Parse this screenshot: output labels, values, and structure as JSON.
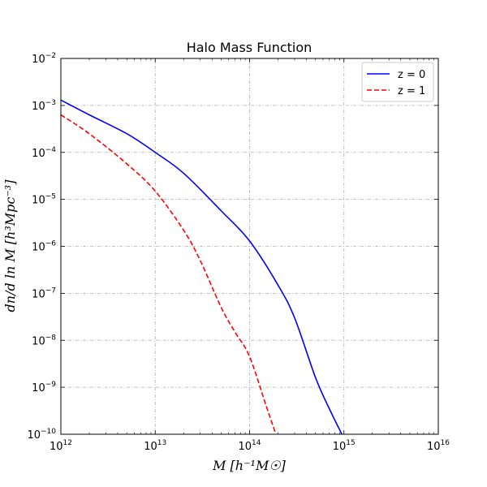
{
  "chart_data": {
    "type": "line",
    "title": "Halo Mass Function",
    "xlabel": "M [h⁻¹M☉]",
    "ylabel": "dn/d ln M [h³Mpc⁻³]",
    "xscale": "log",
    "yscale": "log",
    "xlim": [
      1000000000000.0,
      1e+16
    ],
    "ylim": [
      1e-10,
      0.01
    ],
    "grid": true,
    "legend_position": "top-right",
    "x_ticks": [
      {
        "base": "10",
        "exp": "12",
        "value": 1000000000000.0
      },
      {
        "base": "10",
        "exp": "13",
        "value": 10000000000000.0
      },
      {
        "base": "10",
        "exp": "14",
        "value": 100000000000000.0
      },
      {
        "base": "10",
        "exp": "15",
        "value": 1000000000000000.0
      },
      {
        "base": "10",
        "exp": "16",
        "value": 1e+16
      }
    ],
    "y_ticks": [
      {
        "base": "10",
        "exp": "−10",
        "value": 1e-10
      },
      {
        "base": "10",
        "exp": "−9",
        "value": 1e-09
      },
      {
        "base": "10",
        "exp": "−8",
        "value": 1e-08
      },
      {
        "base": "10",
        "exp": "−7",
        "value": 1e-07
      },
      {
        "base": "10",
        "exp": "−6",
        "value": 1e-06
      },
      {
        "base": "10",
        "exp": "−5",
        "value": 1e-05
      },
      {
        "base": "10",
        "exp": "−4",
        "value": 0.0001
      },
      {
        "base": "10",
        "exp": "−3",
        "value": 0.001
      },
      {
        "base": "10",
        "exp": "−2",
        "value": 0.01
      }
    ],
    "series": [
      {
        "name": "z = 0",
        "color": "#0000ff",
        "dash": "solid",
        "x": [
          1000000000000.0,
          2000000000000.0,
          5000000000000.0,
          10000000000000.0,
          20000000000000.0,
          50000000000000.0,
          100000000000000.0,
          200000000000000.0,
          300000000000000.0,
          500000000000000.0,
          700000000000000.0,
          950000000000000.0
        ],
        "y": [
          0.0013,
          0.00063,
          0.00025,
          0.0001,
          3.6e-05,
          5.7e-06,
          1.3e-06,
          1.5e-07,
          3e-08,
          1.6e-09,
          3.5e-10,
          1e-10
        ]
      },
      {
        "name": "z = 1",
        "color": "#ff0000",
        "dash": "dashed",
        "x": [
          1000000000000.0,
          2000000000000.0,
          5000000000000.0,
          10000000000000.0,
          20000000000000.0,
          30000000000000.0,
          50000000000000.0,
          70000000000000.0,
          100000000000000.0,
          150000000000000.0,
          190000000000000.0
        ],
        "y": [
          0.00063,
          0.00025,
          5.7e-05,
          1.5e-05,
          2.2e-06,
          5e-07,
          5e-08,
          1.5e-08,
          4.5e-09,
          4e-10,
          1e-10
        ]
      }
    ]
  }
}
